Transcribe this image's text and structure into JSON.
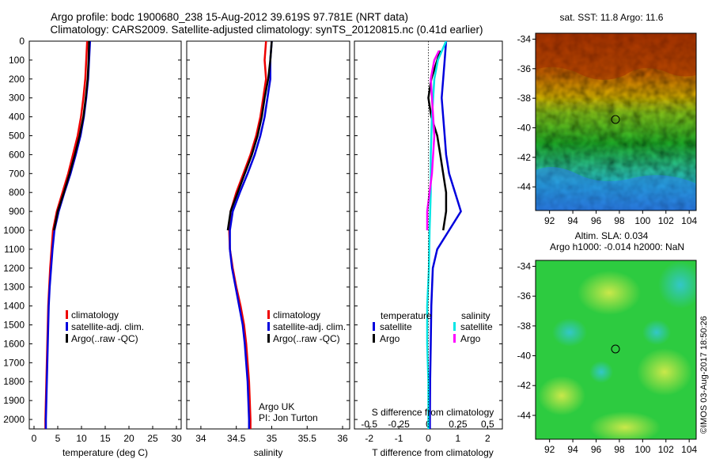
{
  "title_line1": "Argo profile: bodc 1900680_238 15-Aug-2012 39.619S 97.781E (NRT data)",
  "title_line2": "Climatology: CARS2009. Satellite-adjusted climatology: synTS_20120815.nc (0.41d earlier)",
  "copyright": "©IMOS 03-Aug-2017 18:50:26",
  "depth_ticks": [
    "0",
    "100",
    "200",
    "300",
    "400",
    "500",
    "600",
    "700",
    "800",
    "900",
    "1000",
    "1100",
    "1200",
    "1300",
    "1400",
    "1500",
    "1600",
    "1700",
    "1800",
    "1900",
    "2000"
  ],
  "colors": {
    "climatology": "#ee0000",
    "satellite": "#0000dd",
    "argo": "#000000",
    "sal_satellite": "#00e5e5",
    "sal_argo": "#ff00ff"
  },
  "temperature_panel": {
    "xlabel": "temperature (deg C)",
    "xticks": [
      "0",
      "5",
      "10",
      "15",
      "20",
      "25",
      "30"
    ],
    "legend": [
      "climatology",
      "satellite-adj. clim.",
      "Argo(..raw -QC)"
    ]
  },
  "salinity_panel": {
    "xlabel": "salinity",
    "xticks": [
      "34",
      "34.5",
      "35",
      "35.5",
      "36"
    ],
    "legend": [
      "climatology",
      "satellite-adj. clim.",
      "Argo(..raw -QC)"
    ],
    "note1": "Argo UK",
    "note2": "PI: Jon Turton"
  },
  "diff_panel": {
    "xlabel": "T difference from climatology",
    "top_label": "S difference from climatology",
    "bottom_ticks": [
      "-2",
      "-1",
      "0",
      "1",
      "2"
    ],
    "top_ticks": [
      "-0.5",
      "-0.25",
      "0",
      "0.25",
      "0.5"
    ],
    "legend_temp_title": "temperature",
    "legend_sal_title": "salinity",
    "legend_temp": [
      "satellite",
      "Argo"
    ],
    "legend_sal": [
      "satellite",
      "Argo"
    ]
  },
  "map_sst": {
    "title": "sat. SST: 11.8 Argo: 11.6",
    "yticks": [
      "-34",
      "-36",
      "-38",
      "-40",
      "-42",
      "-44"
    ],
    "xticks": [
      "92",
      "94",
      "96",
      "98",
      "100",
      "102",
      "104"
    ]
  },
  "map_sla": {
    "title1": "Altim. SLA: 0.034",
    "title2": "Argo h1000: -0.014 h2000: NaN",
    "yticks": [
      "-34",
      "-36",
      "-38",
      "-40",
      "-42",
      "-44"
    ],
    "xticks": [
      "92",
      "94",
      "96",
      "98",
      "100",
      "102",
      "104"
    ]
  },
  "chart_data": [
    {
      "type": "line",
      "xlabel": "temperature (deg C)",
      "ylim": [
        2050,
        0
      ],
      "xlim": [
        -1,
        31
      ],
      "series": [
        {
          "name": "climatology",
          "depth": [
            0,
            100,
            200,
            300,
            400,
            500,
            600,
            700,
            800,
            900,
            1000,
            1100,
            1200,
            1300,
            1400,
            1500,
            1600,
            1700,
            1800,
            1900,
            2000,
            2050
          ],
          "values": [
            11.2,
            11.0,
            10.8,
            10.4,
            9.9,
            9.2,
            8.2,
            7.2,
            6.0,
            4.8,
            4.0,
            3.7,
            3.4,
            3.2,
            3.0,
            2.9,
            2.8,
            2.7,
            2.6,
            2.5,
            2.4,
            2.4
          ]
        },
        {
          "name": "satellite-adj. clim.",
          "depth": [
            0,
            100,
            200,
            300,
            400,
            500,
            600,
            700,
            800,
            900,
            1000,
            1100,
            1200,
            1300,
            1400,
            1500,
            1600,
            1700,
            1800,
            1900,
            2000,
            2050
          ],
          "values": [
            11.8,
            11.6,
            11.4,
            11.0,
            10.5,
            9.8,
            8.8,
            7.7,
            6.4,
            5.2,
            4.3,
            3.9,
            3.6,
            3.3,
            3.1,
            3.0,
            2.9,
            2.8,
            2.7,
            2.6,
            2.5,
            2.5
          ]
        },
        {
          "name": "Argo(..raw -QC)",
          "depth": [
            0,
            100,
            200,
            300,
            400,
            500,
            600,
            700,
            800,
            900,
            1000
          ],
          "values": [
            11.6,
            11.5,
            11.3,
            10.9,
            10.4,
            9.6,
            8.6,
            7.5,
            6.3,
            5.0,
            4.2
          ]
        }
      ]
    },
    {
      "type": "line",
      "xlabel": "salinity",
      "ylim": [
        2050,
        0
      ],
      "xlim": [
        33.8,
        36.1
      ],
      "series": [
        {
          "name": "climatology",
          "depth": [
            0,
            100,
            200,
            300,
            400,
            500,
            600,
            700,
            800,
            900,
            1000,
            1100,
            1200,
            1300,
            1400,
            1500,
            1600,
            1700,
            1800,
            1900,
            2000,
            2050
          ],
          "values": [
            34.92,
            34.9,
            34.92,
            34.88,
            34.84,
            34.78,
            34.7,
            34.6,
            34.5,
            34.42,
            34.4,
            34.41,
            34.45,
            34.5,
            34.56,
            34.61,
            34.64,
            34.66,
            34.68,
            34.69,
            34.7,
            34.7
          ]
        },
        {
          "name": "satellite-adj. clim.",
          "depth": [
            0,
            100,
            200,
            300,
            400,
            500,
            600,
            700,
            800,
            900,
            1000,
            1100,
            1200,
            1300,
            1400,
            1500,
            1600,
            1700,
            1800,
            1900,
            2000,
            2050
          ],
          "values": [
            35.0,
            34.98,
            34.98,
            34.94,
            34.9,
            34.84,
            34.76,
            34.66,
            34.55,
            34.45,
            34.41,
            34.41,
            34.44,
            34.49,
            34.54,
            34.59,
            34.62,
            34.64,
            34.66,
            34.67,
            34.68,
            34.68
          ]
        },
        {
          "name": "Argo(..raw -QC)",
          "depth": [
            0,
            100,
            200,
            300,
            400,
            500,
            600,
            700,
            800,
            900,
            1000
          ],
          "values": [
            35.0,
            34.98,
            34.95,
            34.9,
            34.86,
            34.8,
            34.72,
            34.62,
            34.52,
            34.42,
            34.38
          ]
        }
      ]
    },
    {
      "type": "line",
      "xlabel": "T difference from climatology",
      "ylim": [
        2050,
        0
      ],
      "xlim": [
        -2.5,
        2.5
      ],
      "series": [
        {
          "name": "temperature satellite",
          "depth": [
            0,
            100,
            200,
            300,
            400,
            500,
            600,
            700,
            800,
            900,
            1000,
            1100,
            1200,
            1400,
            1600,
            1800,
            2000,
            2050
          ],
          "values": [
            0.6,
            0.55,
            0.5,
            0.45,
            0.5,
            0.55,
            0.6,
            0.7,
            0.9,
            1.1,
            0.7,
            0.3,
            0.15,
            0.1,
            0.08,
            0.06,
            0.05,
            0.05
          ]
        },
        {
          "name": "temperature Argo",
          "depth": [
            50,
            100,
            200,
            300,
            400,
            500,
            600,
            700,
            800,
            900,
            1000
          ],
          "values": [
            0.4,
            0.3,
            0.1,
            0.0,
            0.1,
            0.3,
            0.4,
            0.5,
            0.6,
            0.6,
            0.5
          ]
        },
        {
          "name": "salinity satellite",
          "depth": [
            0,
            100,
            200,
            300,
            400,
            600,
            800,
            1000,
            1200,
            1400,
            1600,
            1800,
            2000,
            2050
          ],
          "values": [
            0.15,
            0.08,
            0.05,
            0.04,
            0.03,
            0.02,
            0.02,
            0.01,
            0.005,
            -0.01,
            -0.01,
            0,
            0,
            0
          ]
        },
        {
          "name": "salinity Argo",
          "depth": [
            50,
            100,
            200,
            300,
            400,
            500,
            600,
            700,
            800,
            900,
            1000
          ],
          "values": [
            0.09,
            0.05,
            0.02,
            0.03,
            0.04,
            0.05,
            0.04,
            0.03,
            0.01,
            -0.01,
            -0.01
          ]
        }
      ]
    }
  ]
}
